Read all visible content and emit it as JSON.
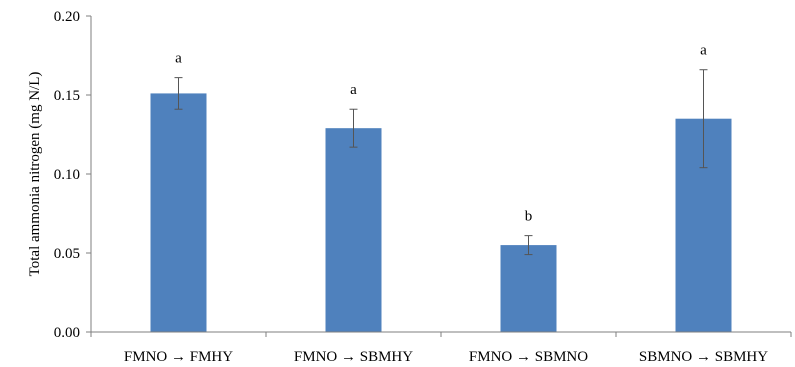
{
  "chart_data": {
    "type": "bar",
    "title": "",
    "xlabel": "",
    "ylabel": "Total ammonia nitrogen (mg N/L)",
    "categories": [
      "FMNO → FMHY",
      "FMNO → SBMHY",
      "FMNO → SBMNO",
      "SBMNO → SBMHY"
    ],
    "values": [
      0.151,
      0.129,
      0.055,
      0.135
    ],
    "errors": [
      0.01,
      0.012,
      0.006,
      0.031
    ],
    "significance": [
      "a",
      "a",
      "b",
      "a"
    ],
    "ylim": [
      0,
      0.2
    ],
    "yticks": [
      "0.00",
      "0.05",
      "0.10",
      "0.15",
      "0.20"
    ],
    "bar_color": "#4f81bd",
    "grid": false,
    "legend": "none"
  }
}
